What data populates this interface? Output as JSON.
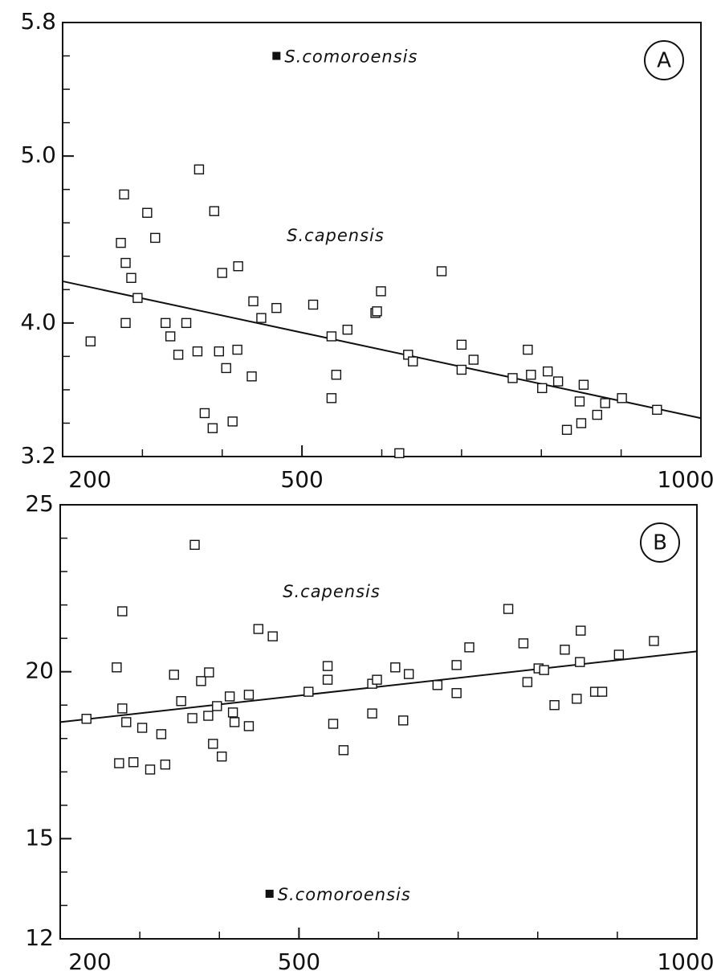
{
  "chart_data": [
    {
      "type": "scatter",
      "panel_label": "A",
      "xlim": [
        200,
        1000
      ],
      "xticks": [
        200,
        500,
        1000
      ],
      "xminor_ticks": [
        300,
        400,
        600,
        700,
        800,
        900
      ],
      "ylim": [
        3.2,
        5.8
      ],
      "yticks": [
        3.2,
        {
          "value": 4,
          "label": "4.0"
        },
        {
          "value": 5,
          "label": "5.0"
        },
        5.8
      ],
      "yminor_ticks": [
        3.4,
        3.6,
        3.8,
        4.2,
        4.4,
        4.6,
        4.8,
        5.2,
        5.4,
        5.6
      ],
      "series": [
        {
          "name": "S.capensis",
          "marker": "open",
          "color": "#111",
          "x": [
            235,
            277,
            273,
            279,
            286,
            294,
            279,
            306,
            316,
            329,
            335,
            345,
            355,
            371,
            369,
            378,
            388,
            390,
            400,
            396,
            405,
            413,
            419,
            420,
            437,
            439,
            449,
            468,
            514,
            537,
            537,
            543,
            557,
            592,
            594,
            599,
            622,
            633,
            639,
            675,
            700,
            700,
            715,
            764,
            783,
            787,
            801,
            808,
            821,
            832,
            850,
            848,
            853,
            870,
            880,
            901,
            945
          ],
          "values": [
            3.89,
            4.77,
            4.48,
            4.36,
            4.27,
            4.15,
            4.0,
            4.66,
            4.51,
            4.0,
            3.92,
            3.81,
            4.0,
            4.92,
            3.83,
            3.46,
            3.37,
            4.67,
            4.3,
            3.83,
            3.73,
            3.41,
            3.84,
            4.34,
            3.68,
            4.13,
            4.03,
            4.09,
            4.11,
            3.92,
            3.55,
            3.69,
            3.96,
            4.06,
            4.07,
            4.19,
            3.22,
            3.81,
            3.77,
            4.31,
            3.87,
            3.72,
            3.78,
            3.67,
            3.84,
            3.69,
            3.61,
            3.71,
            3.65,
            3.36,
            3.4,
            3.53,
            3.63,
            3.45,
            3.52,
            3.55,
            3.48
          ]
        },
        {
          "name": "S.comoroensis",
          "marker": "filled",
          "color": "#111",
          "x": [
            468
          ],
          "values": [
            5.6
          ]
        }
      ],
      "trend": {
        "x": [
          200,
          1000
        ],
        "y": [
          4.25,
          3.43
        ]
      }
    },
    {
      "type": "scatter",
      "panel_label": "B",
      "xlim": [
        200,
        1000
      ],
      "xticks": [
        200,
        500,
        1000
      ],
      "xminor_ticks": [
        300,
        400,
        600,
        700,
        800,
        900
      ],
      "ylim": [
        12,
        25
      ],
      "yticks": [
        12,
        15,
        20,
        25
      ],
      "yminor_ticks": [
        13,
        14,
        16,
        17,
        18,
        19,
        21,
        22,
        23,
        24
      ],
      "series": [
        {
          "name": "S.capensis",
          "marker": "open",
          "color": "#111",
          "x": [
            233,
            271,
            278,
            278,
            283,
            274,
            292,
            303,
            313,
            327,
            332,
            343,
            352,
            369,
            366,
            377,
            386,
            387,
            392,
            397,
            403,
            413,
            417,
            419,
            437,
            437,
            449,
            467,
            512,
            536,
            536,
            543,
            556,
            592,
            592,
            598,
            621,
            631,
            638,
            674,
            698,
            698,
            714,
            763,
            782,
            787,
            801,
            808,
            821,
            834,
            849,
            853,
            854,
            872,
            881,
            902,
            946
          ],
          "values": [
            18.59,
            20.13,
            18.9,
            21.81,
            18.49,
            17.26,
            17.29,
            18.32,
            17.07,
            18.13,
            17.22,
            19.91,
            19.12,
            23.8,
            18.61,
            19.72,
            18.68,
            19.98,
            17.84,
            18.97,
            17.46,
            19.26,
            18.78,
            18.49,
            19.31,
            18.37,
            21.28,
            21.06,
            19.4,
            20.17,
            19.76,
            18.44,
            17.65,
            19.64,
            18.75,
            19.76,
            20.13,
            18.54,
            19.93,
            19.6,
            20.2,
            19.36,
            20.73,
            21.88,
            20.85,
            19.69,
            20.1,
            20.05,
            19.0,
            20.66,
            19.19,
            20.29,
            21.23,
            19.4,
            19.4,
            20.51,
            20.92
          ]
        },
        {
          "name": "S.comoroensis",
          "marker": "filled",
          "color": "#111",
          "x": [
            463
          ],
          "values": [
            13.35
          ]
        }
      ],
      "trend": {
        "x": [
          200,
          1000
        ],
        "y": [
          18.49,
          20.61
        ]
      }
    }
  ]
}
